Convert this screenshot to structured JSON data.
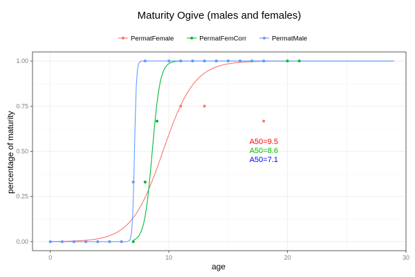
{
  "chart_data": {
    "type": "scatter",
    "title": "Maturity Ogive (males and females)",
    "xlabel": "age",
    "ylabel": "percentage of maturity",
    "xlim": [
      -1.5,
      30
    ],
    "ylim": [
      -0.05,
      1.05
    ],
    "x_ticks": [
      0,
      10,
      20,
      30
    ],
    "y_ticks": [
      0.0,
      0.25,
      0.5,
      0.75,
      1.0
    ],
    "y_tick_labels": [
      "0.00",
      "0.25",
      "0.50",
      "0.75",
      "1.00"
    ],
    "grid": true,
    "legend_position": "top",
    "series": [
      {
        "name": "PermatFemale",
        "color": "#F8766D",
        "points": [
          [
            0,
            0
          ],
          [
            1,
            0
          ],
          [
            2,
            0
          ],
          [
            3,
            0
          ],
          [
            4,
            0
          ],
          [
            5,
            0
          ],
          [
            6,
            0
          ],
          [
            7,
            0.33
          ],
          [
            8,
            0.33
          ],
          [
            9,
            0.667
          ],
          [
            11,
            0.75
          ],
          [
            13,
            0.75
          ],
          [
            18,
            0.667
          ]
        ],
        "curve": {
          "A50": 9.5,
          "slope": 0.75,
          "xmin": 0,
          "xmax": 29
        }
      },
      {
        "name": "PermatFemCorr",
        "color": "#00BA38",
        "points": [
          [
            7,
            0
          ],
          [
            8,
            0.33
          ],
          [
            9,
            0.667
          ],
          [
            11,
            1
          ],
          [
            12,
            1
          ],
          [
            13,
            1
          ],
          [
            14,
            1
          ],
          [
            15,
            1
          ],
          [
            16,
            1
          ],
          [
            17,
            1
          ],
          [
            18,
            1
          ],
          [
            20,
            1
          ],
          [
            21,
            1
          ]
        ],
        "curve": {
          "A50": 8.6,
          "slope": 3.0,
          "xmin": 7,
          "xmax": 29
        }
      },
      {
        "name": "PermatMale",
        "color": "#619CFF",
        "points": [
          [
            0,
            0
          ],
          [
            1,
            0
          ],
          [
            2,
            0
          ],
          [
            3,
            0
          ],
          [
            4,
            0
          ],
          [
            5,
            0
          ],
          [
            6,
            0
          ],
          [
            7,
            0.33
          ],
          [
            8,
            1
          ],
          [
            10,
            1
          ],
          [
            11,
            1
          ],
          [
            12,
            1
          ],
          [
            13,
            1
          ],
          [
            14,
            1
          ],
          [
            15,
            1
          ],
          [
            16,
            1
          ],
          [
            17,
            1
          ],
          [
            18,
            1
          ]
        ],
        "curve": {
          "A50": 7.1,
          "slope": 12.0,
          "xmin": 0,
          "xmax": 29
        }
      }
    ],
    "annotations": [
      {
        "text": "A50=9.5",
        "x": 16.8,
        "y": 0.54,
        "color": "#FF0000"
      },
      {
        "text": "A50=8.6",
        "x": 16.8,
        "y": 0.49,
        "color": "#00BB00"
      },
      {
        "text": "A50=7.1",
        "x": 16.8,
        "y": 0.44,
        "color": "#0000FF"
      }
    ]
  }
}
